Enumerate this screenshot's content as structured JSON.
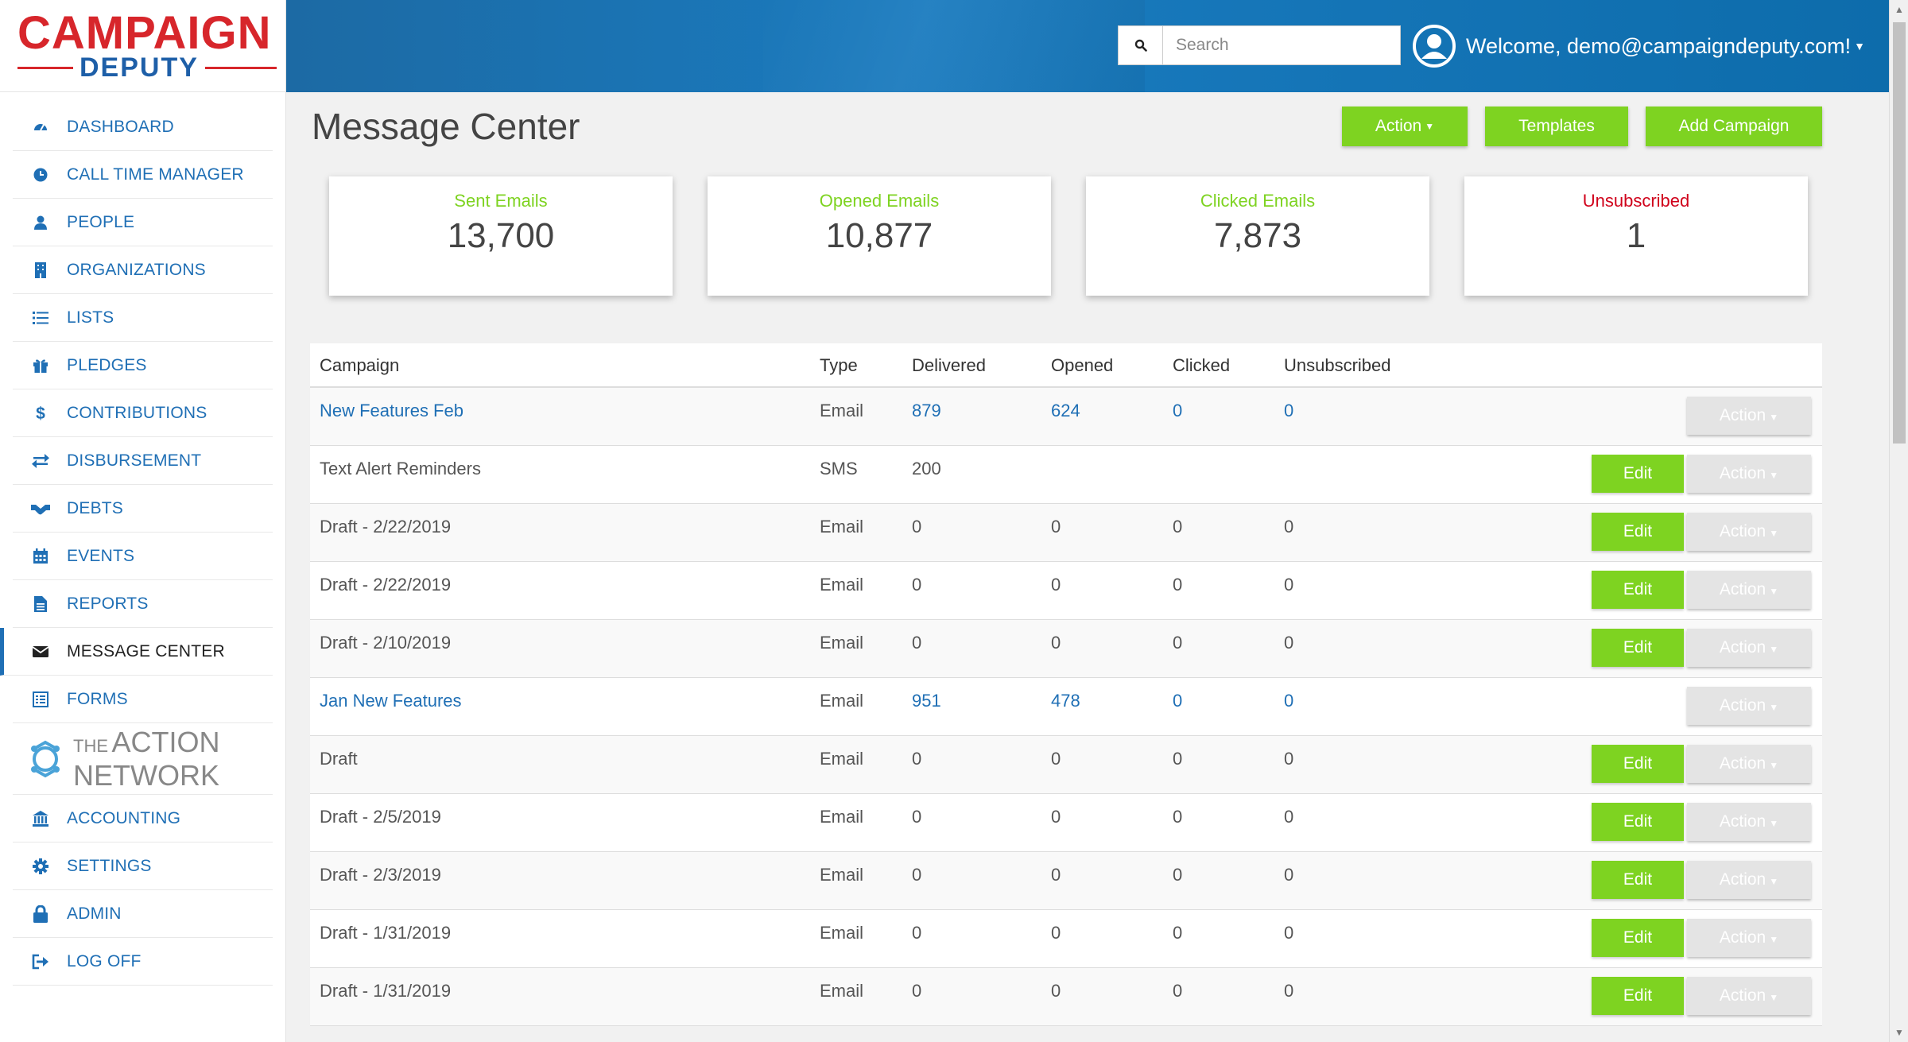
{
  "logo": {
    "top": "CAMPAIGN",
    "bottom": "DEPUTY"
  },
  "sidebar": {
    "items": [
      {
        "label": "DASHBOARD",
        "icon": "dashboard-icon"
      },
      {
        "label": "CALL TIME MANAGER",
        "icon": "clock-icon"
      },
      {
        "label": "PEOPLE",
        "icon": "person-icon"
      },
      {
        "label": "ORGANIZATIONS",
        "icon": "building-icon"
      },
      {
        "label": "LISTS",
        "icon": "list-icon"
      },
      {
        "label": "PLEDGES",
        "icon": "gift-icon"
      },
      {
        "label": "CONTRIBUTIONS",
        "icon": "dollar-icon"
      },
      {
        "label": "DISBURSEMENT",
        "icon": "exchange-icon"
      },
      {
        "label": "DEBTS",
        "icon": "handshake-icon"
      },
      {
        "label": "EVENTS",
        "icon": "calendar-icon"
      },
      {
        "label": "REPORTS",
        "icon": "file-icon"
      },
      {
        "label": "MESSAGE CENTER",
        "icon": "envelope-icon"
      },
      {
        "label": "FORMS",
        "icon": "form-icon"
      }
    ],
    "action_network": {
      "the": "THE",
      "action": "ACTION",
      "network": "NETWORK"
    },
    "items_bottom": [
      {
        "label": "ACCOUNTING",
        "icon": "bank-icon"
      },
      {
        "label": "SETTINGS",
        "icon": "gear-icon"
      },
      {
        "label": "ADMIN",
        "icon": "lock-icon"
      },
      {
        "label": "LOG OFF",
        "icon": "logout-icon"
      }
    ]
  },
  "header": {
    "search_placeholder": "Search",
    "welcome": "Welcome, demo@campaigndeputy.com!"
  },
  "page": {
    "title": "Message Center",
    "buttons": {
      "action": "Action",
      "templates": "Templates",
      "add_campaign": "Add Campaign"
    }
  },
  "stats": [
    {
      "label": "Sent Emails",
      "value": "13,700",
      "color": "#7ed321"
    },
    {
      "label": "Opened Emails",
      "value": "10,877",
      "color": "#7ed321"
    },
    {
      "label": "Clicked Emails",
      "value": "7,873",
      "color": "#7ed321"
    },
    {
      "label": "Unsubscribed",
      "value": "1",
      "color": "#d0021b"
    }
  ],
  "table": {
    "headers": {
      "campaign": "Campaign",
      "type": "Type",
      "delivered": "Delivered",
      "opened": "Opened",
      "clicked": "Clicked",
      "unsubscribed": "Unsubscribed"
    },
    "edit_label": "Edit",
    "action_label": "Action",
    "rows": [
      {
        "name": "New Features Feb",
        "type": "Email",
        "delivered": "879",
        "opened": "624",
        "clicked": "0",
        "unsubscribed": "0",
        "sent": true
      },
      {
        "name": "Text Alert Reminders",
        "type": "SMS",
        "delivered": "200",
        "opened": "",
        "clicked": "",
        "unsubscribed": "",
        "sent": false
      },
      {
        "name": "Draft - 2/22/2019",
        "type": "Email",
        "delivered": "0",
        "opened": "0",
        "clicked": "0",
        "unsubscribed": "0",
        "sent": false
      },
      {
        "name": "Draft - 2/22/2019",
        "type": "Email",
        "delivered": "0",
        "opened": "0",
        "clicked": "0",
        "unsubscribed": "0",
        "sent": false
      },
      {
        "name": "Draft - 2/10/2019",
        "type": "Email",
        "delivered": "0",
        "opened": "0",
        "clicked": "0",
        "unsubscribed": "0",
        "sent": false
      },
      {
        "name": "Jan New Features",
        "type": "Email",
        "delivered": "951",
        "opened": "478",
        "clicked": "0",
        "unsubscribed": "0",
        "sent": true
      },
      {
        "name": "Draft",
        "type": "Email",
        "delivered": "0",
        "opened": "0",
        "clicked": "0",
        "unsubscribed": "0",
        "sent": false
      },
      {
        "name": "Draft - 2/5/2019",
        "type": "Email",
        "delivered": "0",
        "opened": "0",
        "clicked": "0",
        "unsubscribed": "0",
        "sent": false
      },
      {
        "name": "Draft - 2/3/2019",
        "type": "Email",
        "delivered": "0",
        "opened": "0",
        "clicked": "0",
        "unsubscribed": "0",
        "sent": false
      },
      {
        "name": "Draft - 1/31/2019",
        "type": "Email",
        "delivered": "0",
        "opened": "0",
        "clicked": "0",
        "unsubscribed": "0",
        "sent": false
      },
      {
        "name": "Draft - 1/31/2019",
        "type": "Email",
        "delivered": "0",
        "opened": "0",
        "clicked": "0",
        "unsubscribed": "0",
        "sent": false
      }
    ]
  }
}
